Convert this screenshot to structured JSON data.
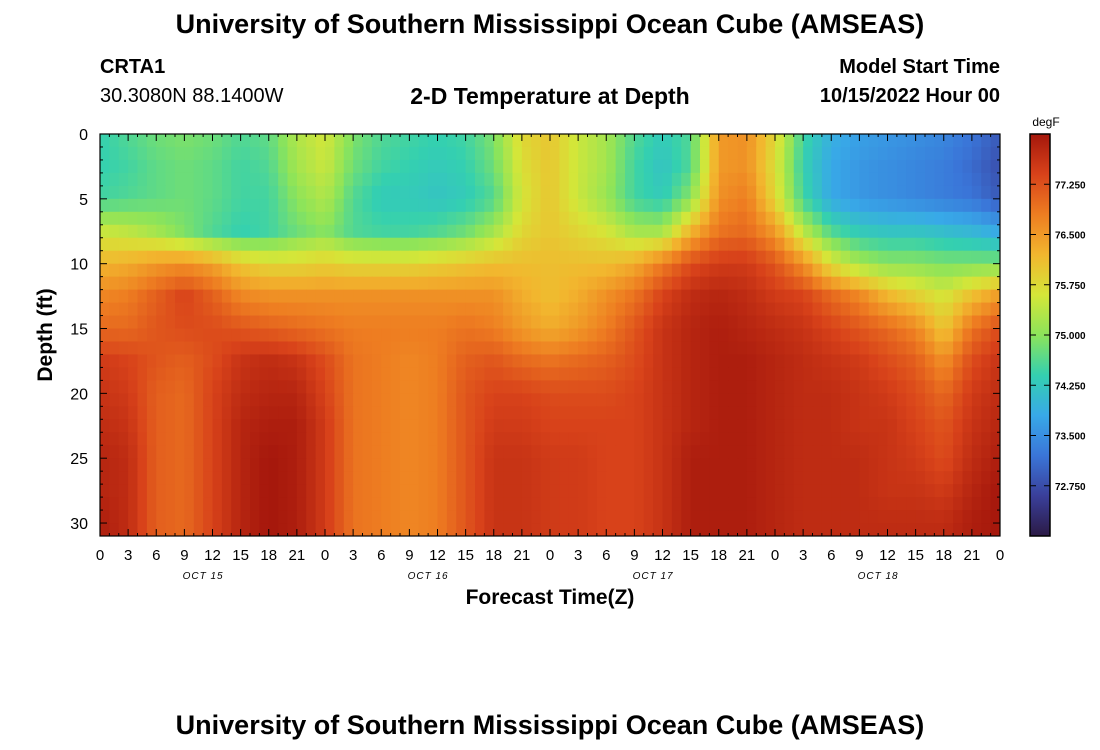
{
  "header": {
    "title": "University of Southern Mississippi Ocean Cube (AMSEAS)",
    "station": "CRTA1",
    "coords": "30.3080N  88.1400W",
    "subtitle": "2-D Temperature at Depth",
    "start_label": "Model Start Time",
    "start_value": "10/15/2022 Hour 00"
  },
  "footer": {
    "title": "University of Southern Mississippi Ocean Cube (AMSEAS)"
  },
  "chart_data": {
    "type": "heatmap",
    "title": "2-D Temperature at Depth",
    "xlabel": "Forecast Time(Z)",
    "ylabel": "Depth (ft)",
    "x_unit": "forecast hour from 10/15/2022 00Z",
    "xlim": [
      0,
      96
    ],
    "ylim": [
      0,
      31
    ],
    "x_tick_values": [
      0,
      3,
      6,
      9,
      12,
      15,
      18,
      21,
      24,
      27,
      30,
      33,
      36,
      39,
      42,
      45,
      48,
      51,
      54,
      57,
      60,
      63,
      66,
      69,
      72,
      75,
      78,
      81,
      84,
      87,
      90,
      93,
      96
    ],
    "x_tick_labels": [
      "0",
      "3",
      "6",
      "9",
      "12",
      "15",
      "18",
      "21",
      "0",
      "3",
      "6",
      "9",
      "12",
      "15",
      "18",
      "21",
      "0",
      "3",
      "6",
      "9",
      "12",
      "15",
      "18",
      "21",
      "0",
      "3",
      "6",
      "9",
      "12",
      "15",
      "18",
      "21",
      "0"
    ],
    "date_labels": [
      {
        "hour": 11,
        "label": "OCT 15"
      },
      {
        "hour": 35,
        "label": "OCT 16"
      },
      {
        "hour": 59,
        "label": "OCT 17"
      },
      {
        "hour": 83,
        "label": "OCT 18"
      }
    ],
    "y_ticks": [
      0,
      5,
      10,
      15,
      20,
      25,
      30
    ],
    "colorbar": {
      "unit": "degF",
      "range": [
        72.0,
        78.0
      ],
      "ticks": [
        77.25,
        76.5,
        75.75,
        75.0,
        74.25,
        73.5,
        72.75
      ],
      "tick_labels": [
        "77.250",
        "76.500",
        "75.750",
        "75.000",
        "74.250",
        "73.500",
        "72.750"
      ],
      "colormap": [
        "#2b1a45",
        "#3a3f9a",
        "#3a75d8",
        "#38a9e8",
        "#34d0b0",
        "#8ce45a",
        "#d5e638",
        "#f2b62e",
        "#ee7d21",
        "#d8421a",
        "#a5170c"
      ]
    },
    "grid": {
      "hours": [
        0,
        3,
        6,
        9,
        12,
        15,
        18,
        21,
        24,
        27,
        30,
        33,
        36,
        39,
        42,
        45,
        48,
        51,
        54,
        57,
        60,
        63,
        66,
        69,
        72,
        75,
        78,
        81,
        84,
        87,
        90,
        93,
        96
      ],
      "depths": [
        0,
        2.5,
        5,
        7.5,
        10,
        12.5,
        15,
        17.5,
        20,
        22.5,
        25,
        27.5,
        30,
        31
      ],
      "temperature_degF": [
        [
          74.4,
          74.6,
          74.8,
          74.9,
          74.8,
          74.6,
          74.7,
          75.3,
          75.6,
          74.9,
          74.6,
          74.5,
          74.4,
          74.5,
          74.9,
          75.8,
          76.0,
          75.5,
          75.2,
          74.6,
          74.3,
          74.6,
          76.5,
          76.6,
          75.8,
          74.5,
          73.9,
          73.7,
          73.6,
          73.5,
          73.4,
          73.2,
          72.9
        ],
        [
          74.4,
          74.5,
          74.7,
          74.8,
          74.7,
          74.5,
          74.6,
          75.2,
          75.5,
          74.8,
          74.5,
          74.4,
          74.3,
          74.4,
          74.8,
          75.7,
          76.0,
          75.5,
          75.2,
          74.5,
          74.2,
          74.6,
          76.5,
          76.6,
          75.7,
          74.4,
          73.8,
          73.6,
          73.5,
          73.4,
          73.3,
          73.1,
          72.8
        ],
        [
          74.5,
          74.6,
          74.7,
          74.8,
          74.7,
          74.5,
          74.5,
          75.0,
          75.3,
          74.6,
          74.3,
          74.3,
          74.2,
          74.3,
          74.6,
          75.6,
          76.0,
          75.5,
          75.1,
          74.5,
          74.3,
          75.0,
          76.6,
          76.8,
          75.8,
          74.5,
          73.8,
          73.6,
          73.5,
          73.4,
          73.3,
          73.2,
          72.9
        ],
        [
          75.5,
          75.4,
          75.2,
          74.9,
          74.6,
          74.4,
          74.5,
          74.8,
          75.0,
          74.6,
          74.5,
          74.5,
          74.6,
          74.8,
          75.2,
          75.8,
          76.0,
          75.8,
          75.6,
          75.2,
          75.2,
          76.2,
          76.9,
          77.0,
          76.5,
          75.4,
          74.6,
          74.3,
          74.2,
          74.2,
          74.1,
          74.0,
          73.8
        ],
        [
          76.2,
          76.3,
          76.5,
          76.6,
          76.4,
          76.0,
          75.8,
          75.8,
          75.9,
          75.8,
          75.8,
          75.8,
          75.9,
          76.0,
          76.1,
          76.1,
          76.1,
          76.1,
          76.1,
          76.3,
          76.8,
          77.3,
          77.5,
          77.5,
          77.2,
          76.6,
          75.7,
          75.2,
          75.0,
          75.0,
          74.9,
          74.9,
          74.9
        ],
        [
          76.7,
          76.8,
          77.1,
          77.4,
          77.1,
          76.7,
          76.6,
          76.6,
          76.6,
          76.6,
          76.6,
          76.6,
          76.6,
          76.6,
          76.6,
          76.3,
          76.1,
          76.3,
          76.6,
          76.9,
          77.4,
          77.7,
          77.8,
          77.7,
          77.5,
          77.4,
          77.0,
          76.7,
          76.2,
          75.9,
          75.6,
          76.1,
          76.5
        ],
        [
          77.0,
          77.0,
          77.2,
          77.3,
          77.3,
          77.2,
          77.1,
          77.0,
          76.9,
          76.8,
          76.8,
          76.8,
          76.8,
          76.9,
          76.8,
          76.5,
          76.3,
          76.5,
          76.8,
          77.2,
          77.6,
          77.8,
          77.9,
          77.8,
          77.7,
          77.6,
          77.4,
          77.2,
          77.0,
          76.7,
          76.0,
          76.9,
          77.3
        ],
        [
          77.5,
          77.4,
          77.2,
          77.1,
          77.3,
          77.6,
          77.7,
          77.6,
          77.3,
          76.9,
          76.8,
          76.7,
          76.8,
          77.1,
          77.2,
          77.0,
          76.9,
          77.0,
          77.1,
          77.3,
          77.6,
          77.8,
          77.9,
          77.9,
          77.8,
          77.7,
          77.6,
          77.5,
          77.3,
          77.1,
          76.6,
          77.3,
          77.6
        ],
        [
          77.6,
          77.5,
          77.1,
          77.0,
          77.4,
          77.7,
          77.8,
          77.8,
          77.4,
          76.9,
          76.8,
          76.7,
          76.8,
          77.2,
          77.4,
          77.4,
          77.3,
          77.3,
          77.3,
          77.4,
          77.6,
          77.8,
          77.9,
          77.9,
          77.8,
          77.7,
          77.7,
          77.6,
          77.5,
          77.3,
          77.0,
          77.5,
          77.7
        ],
        [
          77.7,
          77.6,
          77.1,
          77.0,
          77.4,
          77.8,
          77.9,
          77.9,
          77.5,
          76.9,
          76.8,
          76.7,
          76.8,
          77.2,
          77.5,
          77.5,
          77.4,
          77.4,
          77.4,
          77.4,
          77.6,
          77.8,
          77.9,
          77.9,
          77.8,
          77.7,
          77.7,
          77.6,
          77.6,
          77.4,
          77.2,
          77.6,
          77.8
        ],
        [
          77.8,
          77.7,
          77.1,
          77.0,
          77.4,
          77.8,
          78.0,
          77.9,
          77.5,
          76.9,
          76.8,
          76.7,
          76.8,
          77.2,
          77.6,
          77.6,
          77.5,
          77.5,
          77.4,
          77.4,
          77.6,
          77.9,
          77.9,
          77.9,
          77.8,
          77.7,
          77.7,
          77.7,
          77.6,
          77.5,
          77.3,
          77.7,
          77.9
        ],
        [
          77.8,
          77.7,
          77.1,
          77.0,
          77.4,
          77.8,
          78.0,
          77.9,
          77.5,
          76.9,
          76.8,
          76.7,
          76.8,
          77.2,
          77.6,
          77.6,
          77.5,
          77.5,
          77.4,
          77.4,
          77.6,
          77.9,
          77.9,
          77.9,
          77.8,
          77.7,
          77.7,
          77.7,
          77.6,
          77.6,
          77.5,
          77.8,
          78.0
        ],
        [
          77.9,
          77.7,
          77.1,
          77.0,
          77.4,
          77.8,
          78.0,
          77.9,
          77.5,
          76.9,
          76.8,
          76.7,
          76.8,
          77.2,
          77.6,
          77.6,
          77.5,
          77.5,
          77.4,
          77.4,
          77.6,
          77.9,
          77.9,
          77.9,
          77.8,
          77.7,
          77.7,
          77.7,
          77.7,
          77.7,
          77.7,
          77.9,
          78.0
        ],
        [
          77.9,
          77.7,
          77.1,
          77.0,
          77.4,
          77.8,
          78.0,
          77.9,
          77.5,
          76.9,
          76.8,
          76.7,
          76.8,
          77.2,
          77.6,
          77.6,
          77.5,
          77.5,
          77.4,
          77.4,
          77.6,
          77.9,
          77.9,
          77.9,
          77.8,
          77.7,
          77.7,
          77.7,
          77.7,
          77.7,
          77.7,
          77.9,
          78.0
        ]
      ]
    }
  }
}
